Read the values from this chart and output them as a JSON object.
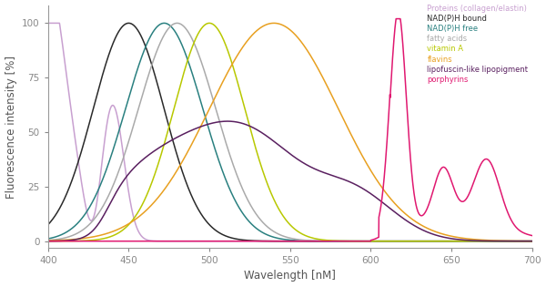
{
  "xlabel": "Wavelength [nM]",
  "ylabel": "Fluorescence intensity [%]",
  "xlim": [
    400,
    700
  ],
  "ylim": [
    -3,
    108
  ],
  "xticks": [
    400,
    450,
    500,
    550,
    600,
    650,
    700
  ],
  "yticks": [
    0,
    25,
    50,
    75,
    100
  ],
  "background": "#ffffff",
  "legend_items": [
    [
      "Proteins (collagen/elastin)",
      "#c8a0d0"
    ],
    [
      "NAD(P)H bound",
      "#2a2a2a"
    ],
    [
      "NAD(P)H free",
      "#2a8080"
    ],
    [
      "fatty acids",
      "#aaaaaa"
    ],
    [
      "vitamin A",
      "#b8c800"
    ],
    [
      "flavins",
      "#e8a020"
    ],
    [
      "lipofuscin-like lipopigment",
      "#5a2060"
    ],
    [
      "porphyrins",
      "#e01870"
    ]
  ]
}
